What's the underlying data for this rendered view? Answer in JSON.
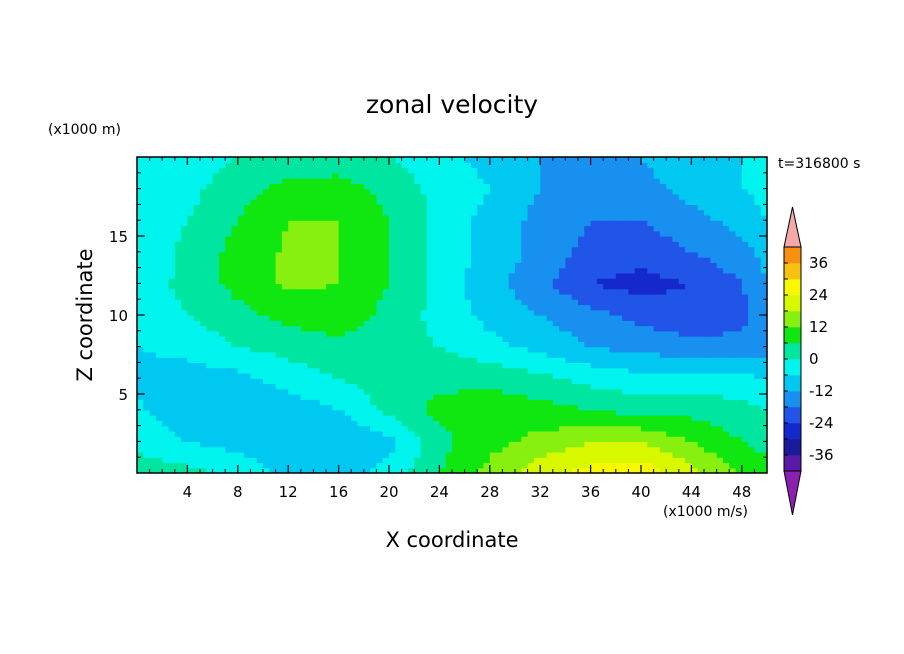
{
  "chart_data": {
    "type": "heatmap",
    "title": "zonal velocity",
    "xlabel": "X coordinate",
    "ylabel": "Z coordinate",
    "x_units": "(x1000 m/s)",
    "y_units": "(x1000 m)",
    "time_label": "t=316800 s",
    "xlim": [
      0,
      50
    ],
    "ylim": [
      0,
      20
    ],
    "x_ticks": [
      "4",
      "8",
      "12",
      "16",
      "20",
      "24",
      "28",
      "32",
      "36",
      "40",
      "44",
      "48"
    ],
    "y_ticks": [
      "5",
      "10",
      "15"
    ],
    "colorbar": {
      "levels": [
        -42,
        -36,
        -30,
        -24,
        -18,
        -12,
        -6,
        0,
        6,
        12,
        18,
        24,
        30,
        36,
        42
      ],
      "tick_labels": [
        "36",
        "24",
        "12",
        "0",
        "-12",
        "-24",
        "-36"
      ],
      "colors": [
        "#8a1fb0",
        "#5a1aa8",
        "#1a1a9c",
        "#1428cc",
        "#2055e8",
        "#1890f0",
        "#00c8f0",
        "#00f4ee",
        "#00e6a0",
        "#10e610",
        "#88f010",
        "#d8f800",
        "#f8f800",
        "#f8c010",
        "#f89010",
        "#f86020",
        "#f02818",
        "#f4a8a8"
      ]
    },
    "grid_x": [
      0,
      4,
      8,
      12,
      16,
      20,
      24,
      28,
      32,
      36,
      40,
      44,
      48,
      50
    ],
    "grid_z": [
      0,
      2,
      4,
      6,
      8,
      10,
      12,
      14,
      16,
      18,
      20
    ],
    "values": [
      [
        4,
        2,
        -2,
        -8,
        -8,
        -4,
        6,
        14,
        22,
        26,
        28,
        20,
        12,
        8
      ],
      [
        -2,
        -6,
        -8,
        -11,
        -12,
        -8,
        4,
        10,
        14,
        18,
        18,
        12,
        6,
        4
      ],
      [
        -5,
        -10,
        -12,
        -10,
        -6,
        2,
        8,
        10,
        8,
        6,
        4,
        4,
        2,
        0
      ],
      [
        -8,
        -9,
        -8,
        -3,
        0,
        3,
        4,
        4,
        2,
        -2,
        -4,
        -4,
        -4,
        -6
      ],
      [
        -6,
        -4,
        0,
        2,
        4,
        2,
        0,
        -4,
        -8,
        -12,
        -14,
        -16,
        -16,
        -14
      ],
      [
        -4,
        0,
        4,
        8,
        10,
        4,
        -2,
        -8,
        -12,
        -16,
        -20,
        -22,
        -20,
        -14
      ],
      [
        -4,
        2,
        8,
        13,
        12,
        6,
        -2,
        -10,
        -16,
        -24,
        -26,
        -24,
        -18,
        -12
      ],
      [
        -6,
        2,
        8,
        13,
        12,
        6,
        -2,
        -8,
        -14,
        -20,
        -22,
        -18,
        -14,
        -10
      ],
      [
        -4,
        0,
        6,
        12,
        12,
        6,
        -2,
        -8,
        -14,
        -18,
        -18,
        -14,
        -10,
        -6
      ],
      [
        -4,
        -2,
        4,
        8,
        9,
        4,
        -2,
        -6,
        -12,
        -16,
        -14,
        -10,
        -6,
        -4
      ],
      [
        -6,
        -4,
        0,
        2,
        2,
        0,
        -4,
        -8,
        -12,
        -14,
        -12,
        -8,
        -6,
        -6
      ]
    ]
  }
}
